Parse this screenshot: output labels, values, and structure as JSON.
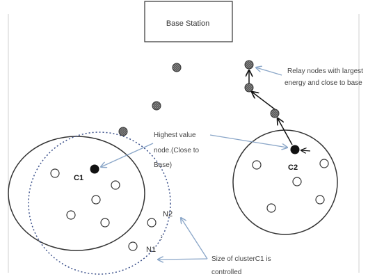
{
  "base_station": {
    "label": "Base Station"
  },
  "clusters": {
    "c1_label": "C1",
    "c2_label": "C2",
    "n1_label": "N1",
    "n2_label": "N2"
  },
  "annotations": {
    "highest_value": [
      "Highest value",
      "node.(Close to",
      "Base)"
    ],
    "relay": [
      "Relay nodes with largest",
      "energy and close to base"
    ],
    "cluster_size": [
      "Size of clusterC1 is",
      "controlled"
    ]
  },
  "colors": {
    "arrow_blue": "#8aa6c8",
    "cluster_dotted": "#3a4f8a",
    "node_fill": "#222222",
    "relay_fill": "#444444"
  }
}
